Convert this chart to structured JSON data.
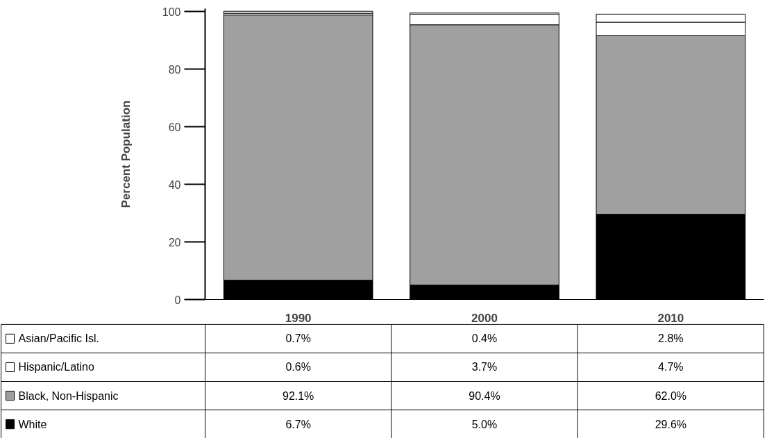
{
  "chart_data": {
    "type": "bar",
    "stacked": true,
    "ylabel": "Percent Population",
    "categories": [
      "1990",
      "2000",
      "2010"
    ],
    "ylim": [
      0,
      101
    ],
    "yticks": [
      0,
      20,
      40,
      60,
      80,
      100
    ],
    "grid": false,
    "legend": "bottom left",
    "series": [
      {
        "name": "White",
        "color": "#000000",
        "values": [
          6.7,
          5.0,
          29.6
        ],
        "value_labels": [
          "6.7%",
          "5.0%",
          "29.6%"
        ]
      },
      {
        "name": "Black, Non-Hispanic",
        "color": "#a0a0a0",
        "values": [
          92.1,
          90.4,
          62.0
        ],
        "value_labels": [
          "92.1%",
          "90.4%",
          "62.0%"
        ]
      },
      {
        "name": "Hispanic/Latino",
        "color": "#ffffff",
        "values": [
          0.6,
          3.7,
          4.7
        ],
        "value_labels": [
          "0.6%",
          "3.7%",
          "4.7%"
        ]
      },
      {
        "name": "Asian/Pacific Isl.",
        "color": "#ffffff",
        "values": [
          0.7,
          0.4,
          2.8
        ],
        "value_labels": [
          "0.7%",
          "0.4%",
          "2.8%"
        ]
      }
    ]
  }
}
